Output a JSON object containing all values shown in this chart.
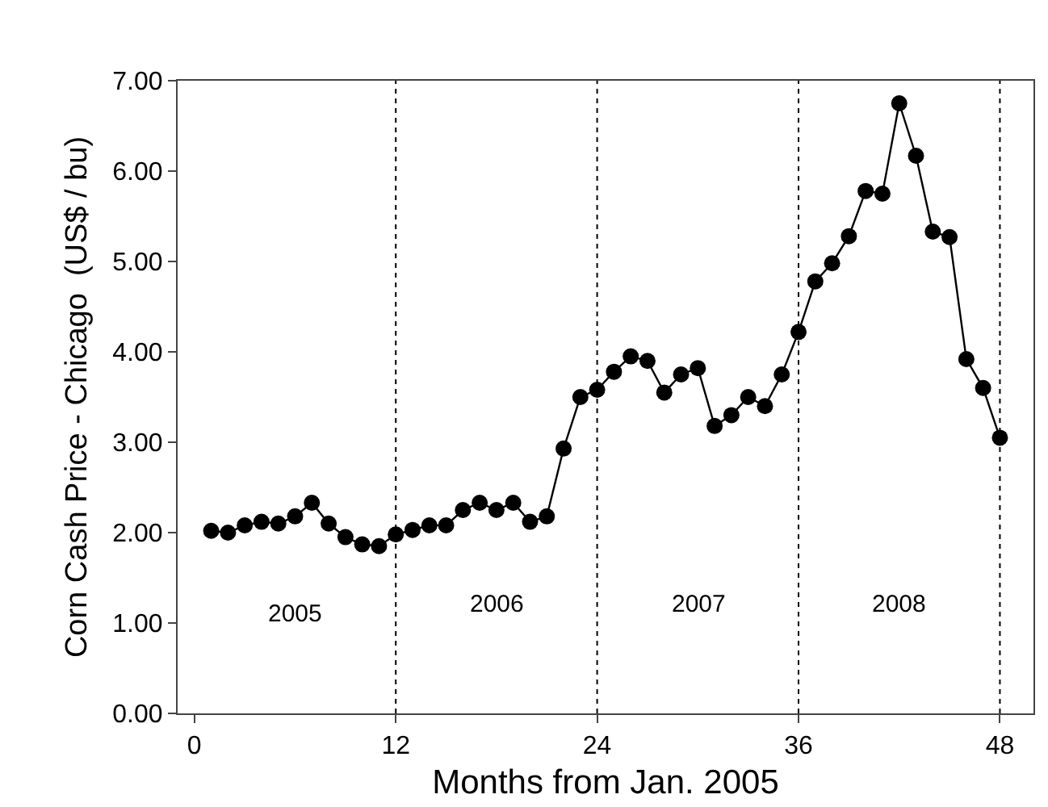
{
  "chart_data": {
    "type": "line",
    "xlabel": "Months from Jan. 2005",
    "ylabel": "Corn Cash Price - Chicago  (US$ / bu)",
    "x": [
      1,
      2,
      3,
      4,
      5,
      6,
      7,
      8,
      9,
      10,
      11,
      12,
      13,
      14,
      15,
      16,
      17,
      18,
      19,
      20,
      21,
      22,
      23,
      24,
      25,
      26,
      27,
      28,
      29,
      30,
      31,
      32,
      33,
      34,
      35,
      36,
      37,
      38,
      39,
      40,
      41,
      42,
      43,
      44,
      45,
      46,
      47,
      48
    ],
    "series": [
      {
        "color": "#000000",
        "values": [
          2.02,
          2.0,
          2.08,
          2.12,
          2.1,
          2.18,
          2.33,
          2.1,
          1.95,
          1.87,
          1.85,
          1.98,
          2.03,
          2.08,
          2.08,
          2.25,
          2.33,
          2.25,
          2.33,
          2.12,
          2.18,
          2.93,
          3.5,
          3.58,
          3.78,
          3.95,
          3.9,
          3.55,
          3.75,
          3.82,
          3.18,
          3.3,
          3.5,
          3.4,
          3.75,
          4.22,
          4.78,
          4.98,
          5.28,
          5.78,
          5.75,
          6.75,
          6.17,
          5.33,
          5.27,
          3.92,
          3.6,
          3.05
        ]
      }
    ],
    "xlim": [
      -1,
      50
    ],
    "xticks": [
      0,
      12,
      24,
      36,
      48
    ],
    "ylim": [
      0,
      7
    ],
    "yticks": [
      {
        "value": 0,
        "label": "0.00"
      },
      {
        "value": 1,
        "label": "1.00"
      },
      {
        "value": 2,
        "label": "2.00"
      },
      {
        "value": 3,
        "label": "3.00"
      },
      {
        "value": 4,
        "label": "4.00"
      },
      {
        "value": 5,
        "label": "5.00"
      },
      {
        "value": 6,
        "label": "6.00"
      },
      {
        "value": 7,
        "label": "7.00"
      }
    ],
    "ref_lines": [
      {
        "axis": "x",
        "value": 12,
        "line_style": "dotted"
      },
      {
        "axis": "x",
        "value": 24,
        "line_style": "dotted"
      },
      {
        "axis": "x",
        "value": 36,
        "line_style": "dotted"
      },
      {
        "axis": "x",
        "value": 48,
        "line_style": "dotted"
      }
    ],
    "annotations": [
      "2005",
      "2006",
      "2007",
      "2008"
    ],
    "marker": "circle",
    "line_style": "solid"
  }
}
